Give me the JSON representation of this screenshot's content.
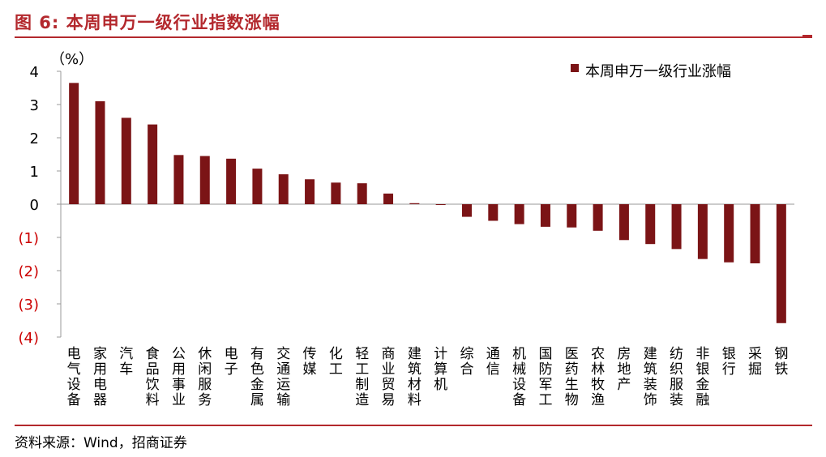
{
  "figure": {
    "title": "图 6:  本周申万一级行业指数涨幅",
    "source": "资料来源：Wind，招商证券"
  },
  "colors": {
    "bar": "#7b1416",
    "accent": "#b3282d",
    "negative_tick": "#cc0000",
    "positive_tick": "#000000",
    "axis": "#999999"
  },
  "chart_data": {
    "type": "bar",
    "title": "",
    "ylabel": "（%）",
    "xlabel": "",
    "ylim": [
      -4,
      4
    ],
    "yticks": [
      4,
      3,
      2,
      1,
      0,
      -1,
      -2,
      -3,
      -4
    ],
    "ytick_labels": [
      "4",
      "3",
      "2",
      "1",
      "0",
      "(1)",
      "(2)",
      "(3)",
      "(4)"
    ],
    "grid": false,
    "legend": {
      "position": "top-right",
      "entries": [
        "本周申万一级行业涨幅"
      ]
    },
    "categories": [
      "电气设备",
      "家用电器",
      "汽车",
      "食品饮料",
      "公用事业",
      "休闲服务",
      "电子",
      "有色金属",
      "交通运输",
      "传媒",
      "化工",
      "轻工制造",
      "商业贸易",
      "建筑材料",
      "计算机",
      "综合",
      "通信",
      "机械设备",
      "国防军工",
      "医药生物",
      "农林牧渔",
      "房地产",
      "建筑装饰",
      "纺织服装",
      "非银金融",
      "银行",
      "采掘",
      "钢铁"
    ],
    "series": [
      {
        "name": "本周申万一级行业涨幅",
        "values": [
          3.65,
          3.1,
          2.6,
          2.4,
          1.48,
          1.45,
          1.37,
          1.07,
          0.9,
          0.75,
          0.65,
          0.63,
          0.32,
          0.03,
          -0.02,
          -0.38,
          -0.5,
          -0.6,
          -0.68,
          -0.7,
          -0.8,
          -1.08,
          -1.2,
          -1.35,
          -1.65,
          -1.75,
          -1.78,
          -3.58
        ]
      }
    ]
  }
}
